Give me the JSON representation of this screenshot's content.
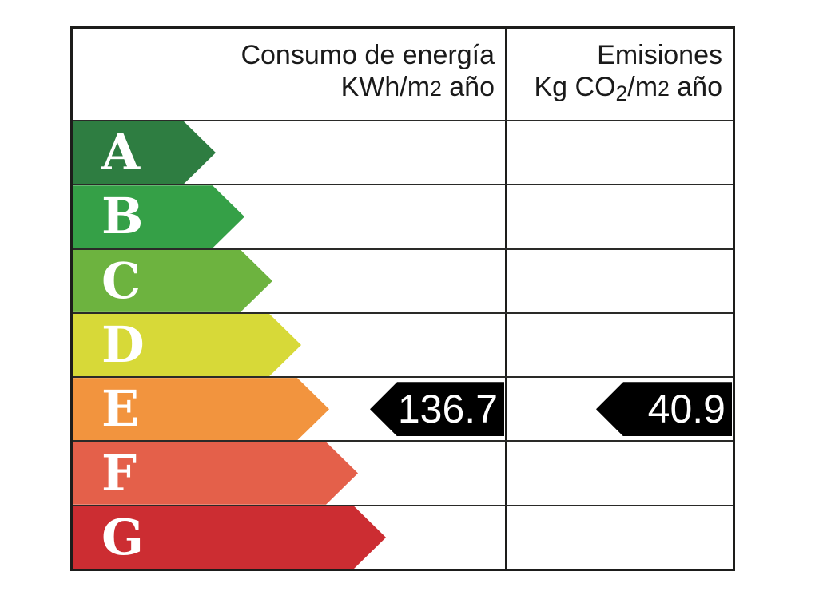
{
  "header": {
    "left": {
      "line1": "Consumo de energía",
      "line2_parts": [
        "KWh/m",
        "2",
        " año"
      ]
    },
    "right": {
      "line1": "Emisiones",
      "line2_parts": [
        "Kg CO",
        "2",
        "/m",
        "2",
        " año"
      ]
    }
  },
  "ratings": [
    {
      "letter": "A",
      "color": "#2e7d41"
    },
    {
      "letter": "B",
      "color": "#35a047"
    },
    {
      "letter": "C",
      "color": "#6db33f"
    },
    {
      "letter": "D",
      "color": "#d7d938"
    },
    {
      "letter": "E",
      "color": "#f2943e"
    },
    {
      "letter": "F",
      "color": "#e4604a"
    },
    {
      "letter": "G",
      "color": "#cc2d32"
    }
  ],
  "values": {
    "consumption": {
      "value": "136.7",
      "rating": "E"
    },
    "emissions": {
      "value": "40.9",
      "rating": "E"
    }
  },
  "colors": {
    "marker_bg": "#000000",
    "marker_text": "#ffffff",
    "border": "#1d1d1b"
  },
  "chart_data": {
    "type": "table",
    "title": "Etiqueta de eficiencia energética",
    "columns": [
      "Consumo de energía KWh/m2 año",
      "Emisiones Kg CO2/m2 año"
    ],
    "categories": [
      "A",
      "B",
      "C",
      "D",
      "E",
      "F",
      "G"
    ],
    "series": [
      {
        "name": "Consumo de energía (KWh/m2 año)",
        "rating": "E",
        "value": 136.7
      },
      {
        "name": "Emisiones (Kg CO2/m2 año)",
        "rating": "E",
        "value": 40.9
      }
    ],
    "layout": {
      "scale_colors_top_to_bottom": [
        "#2e7d41",
        "#35a047",
        "#6db33f",
        "#d7d938",
        "#f2943e",
        "#e4604a",
        "#cc2d32"
      ],
      "marker_color": "#000000"
    }
  }
}
